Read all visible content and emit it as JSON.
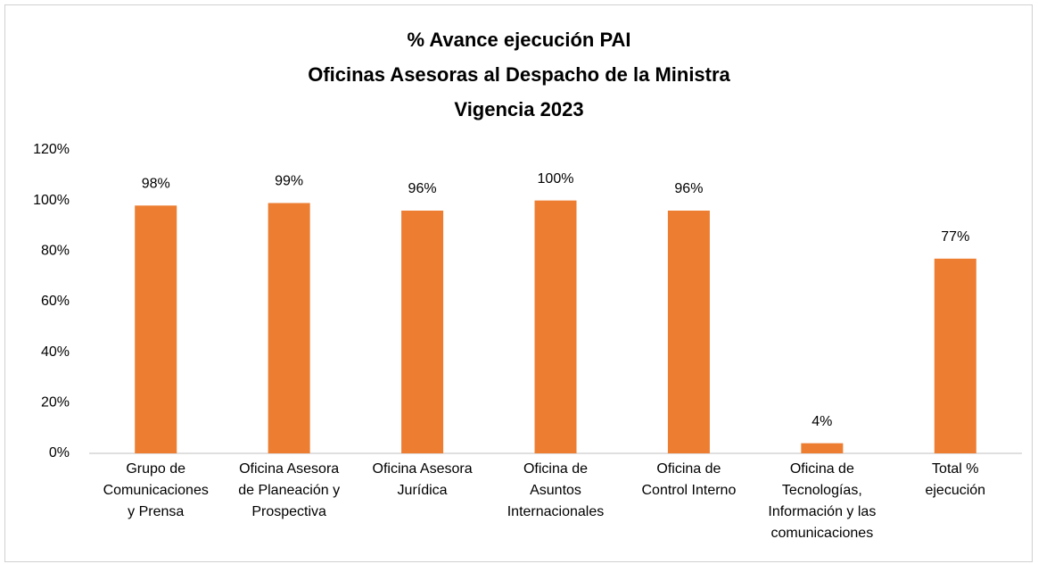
{
  "chart_data": {
    "type": "bar",
    "title": [
      "% Avance ejecución PAI",
      "Oficinas Asesoras al Despacho de la Ministra",
      "Vigencia 2023"
    ],
    "categories": [
      "Grupo de\nComunicaciones\ny Prensa",
      "Oficina Asesora\nde Planeación y\nProspectiva",
      "Oficina Asesora\nJurídica",
      "Oficina de\nAsuntos\nInternacionales",
      "Oficina de\nControl Interno",
      "Oficina de\nTecnologías,\nInformación y las\ncomunicaciones",
      "Total %\nejecución"
    ],
    "values": [
      98,
      99,
      96,
      100,
      96,
      4,
      77
    ],
    "value_labels": [
      "98%",
      "99%",
      "96%",
      "100%",
      "96%",
      "4%",
      "77%"
    ],
    "color": "#ed7d31",
    "ylim": [
      0,
      120
    ],
    "yticks": [
      {
        "value": 0,
        "label": "0%"
      },
      {
        "value": 20,
        "label": "20%"
      },
      {
        "value": 40,
        "label": "40%"
      },
      {
        "value": 60,
        "label": "60%"
      },
      {
        "value": 80,
        "label": "80%"
      },
      {
        "value": 100,
        "label": "100%"
      },
      {
        "value": 120,
        "label": "120%"
      }
    ],
    "grid": false
  }
}
